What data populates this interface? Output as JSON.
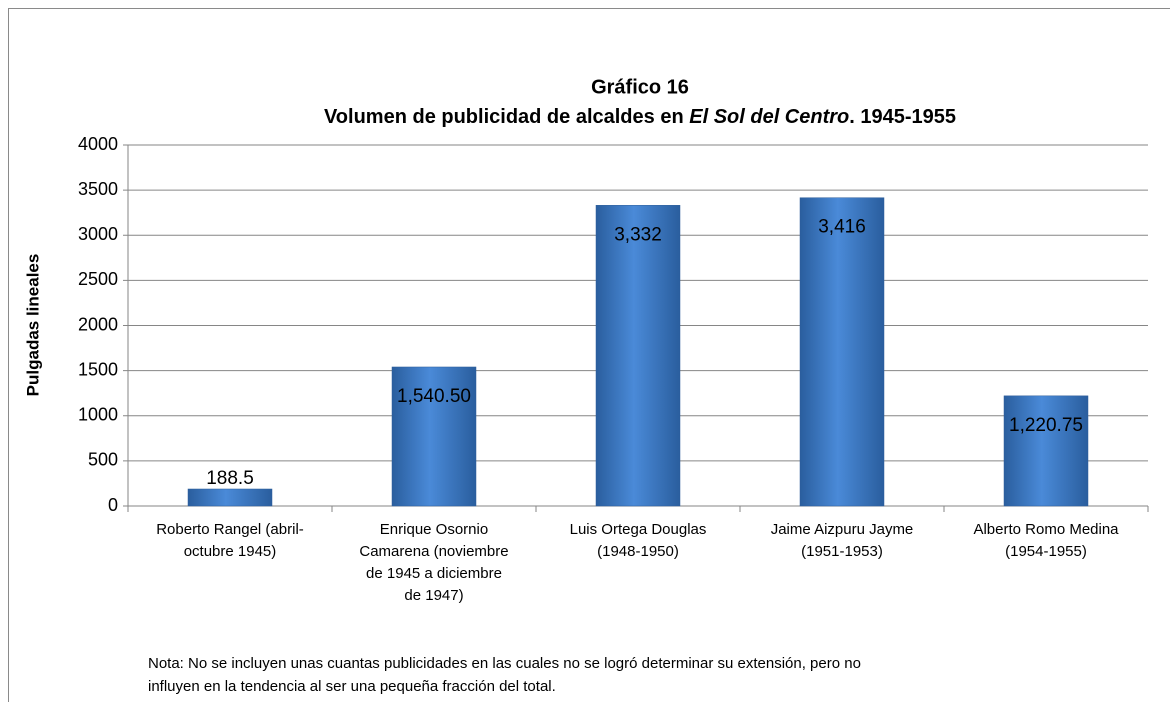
{
  "chart_data": {
    "type": "bar",
    "title": "Gráfico 16",
    "subtitle": [
      "Volumen de publicidad de alcaldes en ",
      "El Sol del Centro",
      ". 1945-1955"
    ],
    "ylabel": "Pulgadas lineales",
    "categories": [
      [
        "Roberto Rangel (abril-",
        "octubre 1945)"
      ],
      [
        "Enrique Osornio",
        "Camarena (noviembre",
        "de 1945 a diciembre",
        "de 1947)"
      ],
      [
        "Luis Ortega Douglas",
        "(1948-1950)"
      ],
      [
        "Jaime Aizpuru Jayme",
        "(1951-1953)"
      ],
      [
        "Alberto Romo Medina",
        "(1954-1955)"
      ]
    ],
    "values": [
      188.5,
      1540.5,
      3332,
      3416,
      1220.75
    ],
    "value_labels": [
      "188.5",
      "1,540.50",
      "3,332",
      "3,416",
      "1,220.75"
    ],
    "color": "#3f7fcf",
    "ylim": [
      0,
      4000
    ],
    "yticks": [
      0,
      500,
      1000,
      1500,
      2000,
      2500,
      3000,
      3500,
      4000
    ],
    "grid": true,
    "note": [
      "Nota: No se incluyen unas cuantas publicidades en las cuales no se logró determinar su extensión, pero no",
      "influyen en la tendencia al ser una pequeña fracción del total."
    ]
  }
}
